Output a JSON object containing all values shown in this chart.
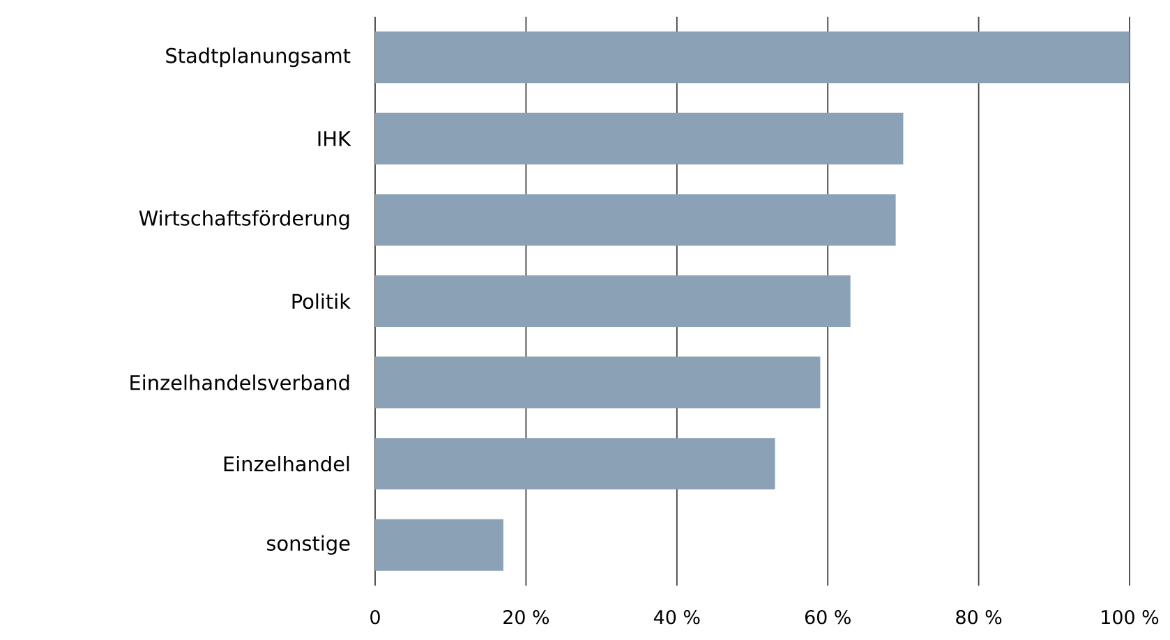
{
  "chart_data": {
    "type": "bar",
    "orientation": "horizontal",
    "categories": [
      "Stadtplanungsamt",
      "IHK",
      "Wirtschaftsförderung",
      "Politik",
      "Einzelhandelsverband",
      "Einzelhandel",
      "sonstige"
    ],
    "values": [
      100,
      70,
      69,
      63,
      59,
      53,
      17
    ],
    "color": "#8aa1b6",
    "xlim": [
      0,
      100
    ],
    "xticks": [
      0,
      {
        "value": 20,
        "label": "20 %"
      },
      {
        "value": 40,
        "label": "40 %"
      },
      {
        "value": 60,
        "label": "60 %"
      },
      {
        "value": 80,
        "label": "80 %"
      },
      {
        "value": 100,
        "label": "100 %"
      }
    ],
    "grid": "x"
  }
}
